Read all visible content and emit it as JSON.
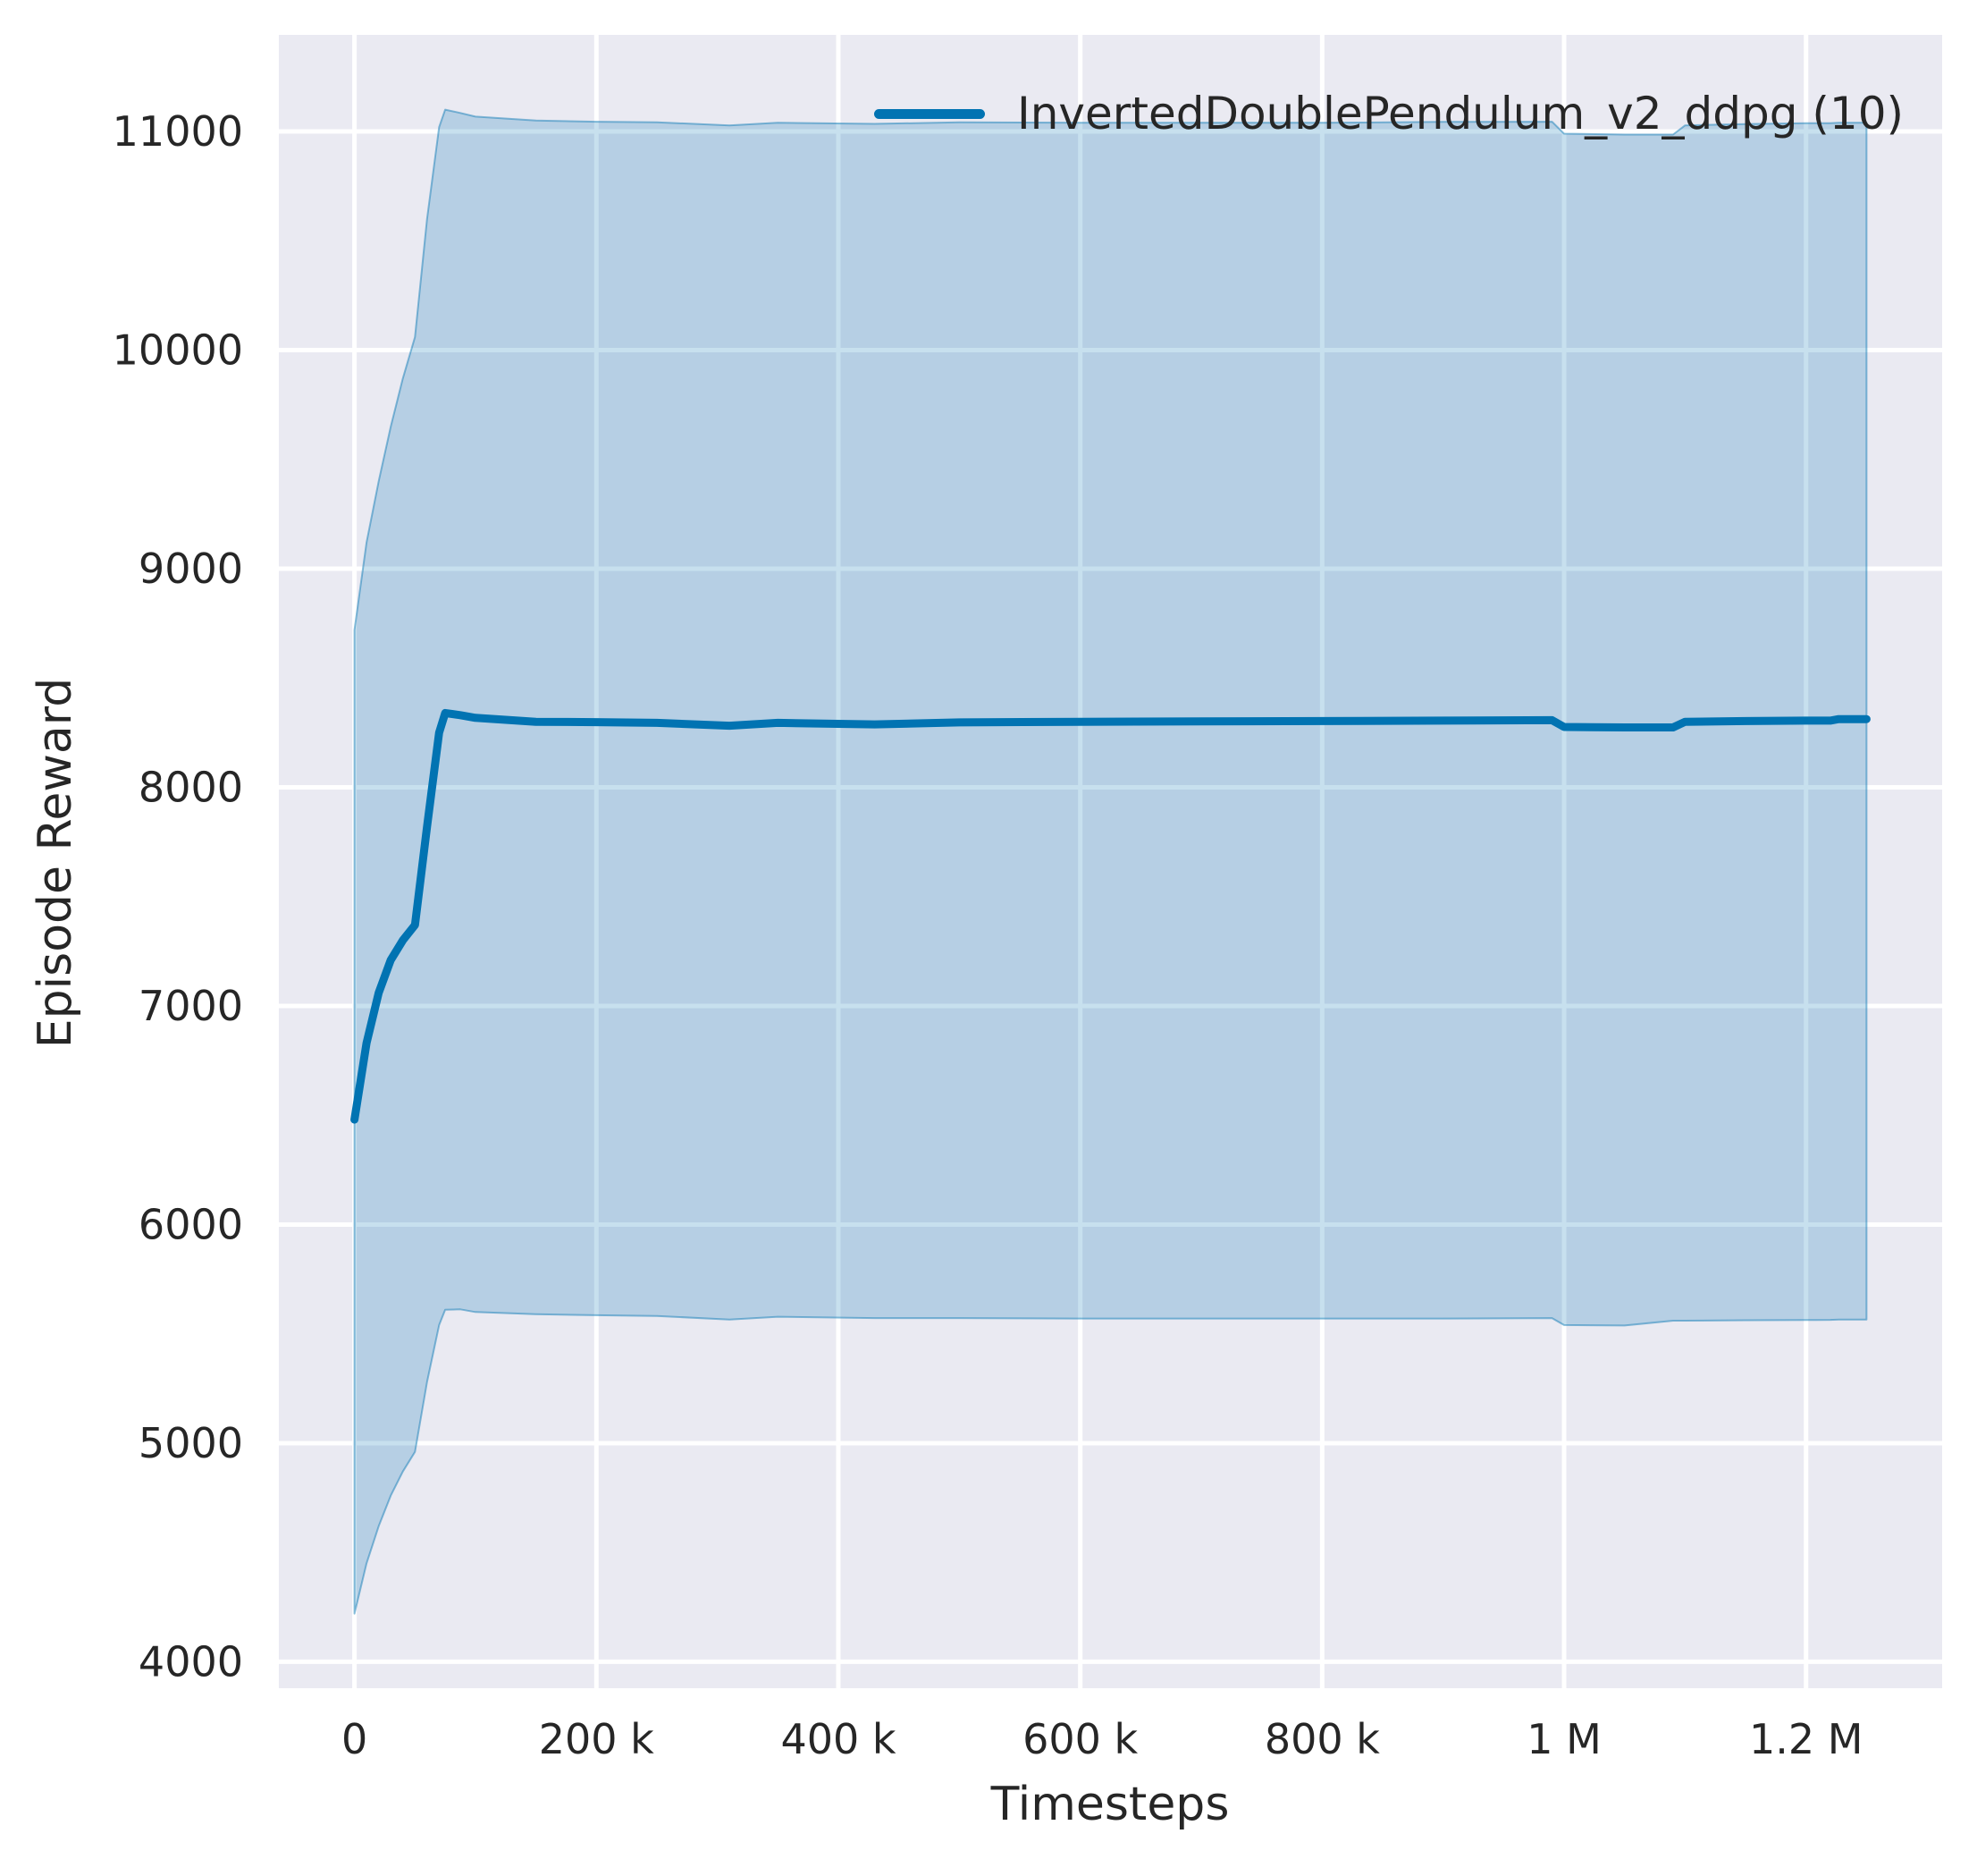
{
  "figure": {
    "background": "#ffffff",
    "plot_background": "#eaeaf2",
    "grid_color": "#ffffff",
    "text_color": "#262626"
  },
  "axes": {
    "x_label": "Timesteps",
    "y_label": "Episode Reward"
  },
  "legend": {
    "entries": [
      {
        "label": "InvertedDoublePendulum_v2_ddpg (10)",
        "color": "#0173b2"
      }
    ],
    "position": "upper right",
    "frame": false
  },
  "chart_data": {
    "type": "line",
    "title": "",
    "xlabel": "Timesteps",
    "ylabel": "Episode Reward",
    "grid": true,
    "legend_position": "upper right",
    "xlim": [
      -62500,
      1312500
    ],
    "ylim": [
      3879,
      11442
    ],
    "xticks": [
      {
        "value": 0,
        "label": "0"
      },
      {
        "value": 200000,
        "label": "200 k"
      },
      {
        "value": 400000,
        "label": "400 k"
      },
      {
        "value": 600000,
        "label": "600 k"
      },
      {
        "value": 800000,
        "label": "800 k"
      },
      {
        "value": 1000000,
        "label": "1 M"
      },
      {
        "value": 1200000,
        "label": "1.2 M"
      }
    ],
    "yticks": [
      {
        "value": 4000,
        "label": "4000"
      },
      {
        "value": 5000,
        "label": "5000"
      },
      {
        "value": 6000,
        "label": "6000"
      },
      {
        "value": 7000,
        "label": "7000"
      },
      {
        "value": 8000,
        "label": "8000"
      },
      {
        "value": 9000,
        "label": "9000"
      },
      {
        "value": 10000,
        "label": "10000"
      },
      {
        "value": 11000,
        "label": "11000"
      }
    ],
    "series": [
      {
        "name": "InvertedDoublePendulum_v2_ddpg (10)",
        "color": "#0173b2",
        "line_width": 9,
        "band_fill_opacity": 0.22,
        "band_edge_opacity": 0.45,
        "x": [
          0,
          10000,
          20000,
          30000,
          40000,
          50000,
          60000,
          70000,
          75000,
          87500,
          100000,
          150000,
          200000,
          250000,
          310000,
          350000,
          430000,
          500000,
          600000,
          700000,
          800000,
          900000,
          990000,
          1000000,
          1050000,
          1090000,
          1100000,
          1150000,
          1200000,
          1220000,
          1227000,
          1250000
        ],
        "mean": [
          6480,
          6830,
          7060,
          7210,
          7300,
          7370,
          7820,
          8250,
          8340,
          8330,
          8318,
          8300,
          8298,
          8295,
          8282,
          8295,
          8288,
          8297,
          8300,
          8302,
          8303,
          8305,
          8307,
          8276,
          8274,
          8274,
          8300,
          8303,
          8305,
          8305,
          8312,
          8312
        ],
        "ci_upper": [
          8720,
          9120,
          9400,
          9650,
          9870,
          10060,
          10600,
          11020,
          11100,
          11085,
          11068,
          11050,
          11045,
          11042,
          11028,
          11040,
          11035,
          11042,
          11040,
          11040,
          11040,
          11044,
          11045,
          10990,
          10986,
          10986,
          11028,
          11034,
          11038,
          11038,
          11040,
          11040
        ],
        "ci_lower": [
          4220,
          4450,
          4620,
          4760,
          4870,
          4960,
          5280,
          5540,
          5610,
          5612,
          5600,
          5590,
          5585,
          5582,
          5565,
          5578,
          5572,
          5572,
          5570,
          5570,
          5570,
          5570,
          5572,
          5540,
          5538,
          5560,
          5560,
          5562,
          5563,
          5564,
          5565,
          5565
        ]
      }
    ]
  }
}
